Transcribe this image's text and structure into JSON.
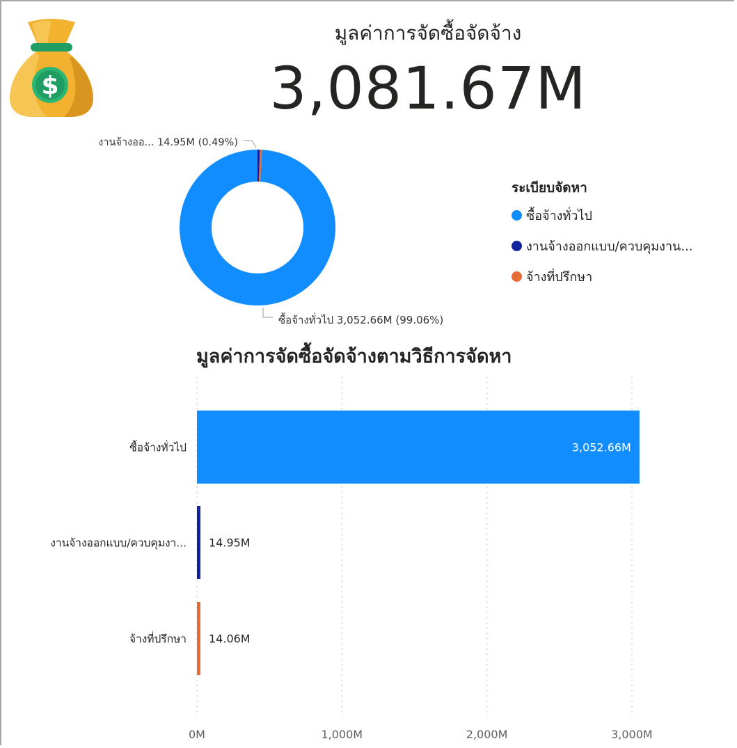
{
  "kpi": {
    "label": "มูลค่าการจัดซื้อจัดจ้าง",
    "value": "3,081.67M"
  },
  "icon": {
    "name": "money-bag-dollar-icon",
    "bag_color": "#f2b12f",
    "coin_color": "#2bb673"
  },
  "chart_data": [
    {
      "type": "pie",
      "subtype": "donut",
      "legend_title": "ระเบียบจัดหา",
      "legend_position": "right",
      "slices": [
        {
          "name": "ซื้อจ้างทั่วไป",
          "value": 3052.66,
          "percent": 99.06,
          "color": "#118dff"
        },
        {
          "name": "งานจ้างออกแบบ/ควบคุมงาน...",
          "value": 14.95,
          "percent": 0.49,
          "color": "#12239e"
        },
        {
          "name": "จ้างที่ปรึกษา",
          "value": 14.06,
          "percent": 0.46,
          "color": "#e66c37"
        }
      ],
      "data_labels": [
        {
          "slice": 1,
          "text": "งานจ้างออ... 14.95M (0.49%)"
        },
        {
          "slice": 0,
          "text": "ซื้อจ้างทั่วไป 3,052.66M (99.06%)"
        }
      ]
    },
    {
      "type": "bar",
      "orientation": "horizontal",
      "title": "มูลค่าการจัดซื้อจัดจ้างตามวิธีการจัดหา",
      "categories": [
        "ซื้อจ้างทั่วไป",
        "งานจ้างออกแบบ/ควบคุมงา...",
        "จ้างที่ปรึกษา"
      ],
      "values": [
        3052.66,
        14.95,
        14.06
      ],
      "value_labels": [
        "3,052.66M",
        "14.95M",
        "14.06M"
      ],
      "colors": [
        "#118dff",
        "#12239e",
        "#e66c37"
      ],
      "xlim": [
        0,
        3600
      ],
      "x_ticks": [
        0,
        1000,
        2000,
        3000
      ],
      "x_tick_labels": [
        "0M",
        "1,000M",
        "2,000M",
        "3,000M"
      ],
      "grid": true
    }
  ]
}
